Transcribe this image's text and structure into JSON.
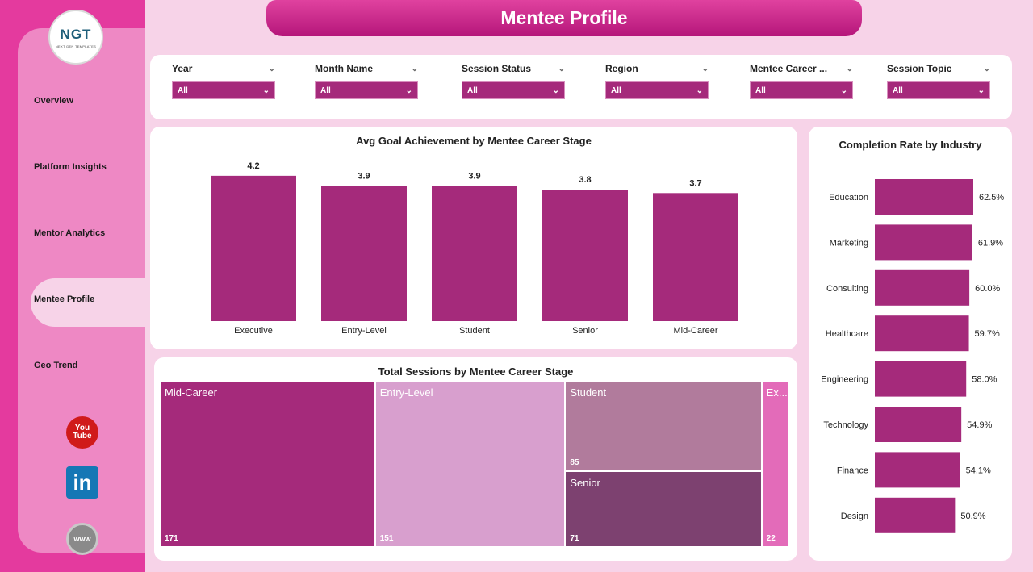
{
  "logo": {
    "mark": "NGT",
    "sub": "NEXT GEN TEMPLATES"
  },
  "nav": {
    "items": [
      {
        "label": "Overview"
      },
      {
        "label": "Platform Insights"
      },
      {
        "label": "Mentor Analytics"
      },
      {
        "label": "Mentee Profile"
      },
      {
        "label": "Geo Trend"
      }
    ],
    "active": "Mentee Profile"
  },
  "social": {
    "youtube": "You Tube",
    "linkedin": "in",
    "web": "www"
  },
  "page_title": "Mentee Profile",
  "filters": [
    {
      "label": "Year",
      "value": "All"
    },
    {
      "label": "Month Name",
      "value": "All"
    },
    {
      "label": "Session Status",
      "value": "All"
    },
    {
      "label": "Region",
      "value": "All"
    },
    {
      "label": "Mentee Career ...",
      "value": "All"
    },
    {
      "label": "Session Topic",
      "value": "All"
    }
  ],
  "colors": {
    "bar": "#a52a7b",
    "accent": "#e43a9e",
    "panel": "#ffffff",
    "bg": "#f7d3e8"
  },
  "chart_data": [
    {
      "type": "bar",
      "title": "Avg Goal Achievement by Mentee Career Stage",
      "categories": [
        "Executive",
        "Entry-Level",
        "Student",
        "Senior",
        "Mid-Career"
      ],
      "values": [
        4.2,
        3.9,
        3.9,
        3.8,
        3.7
      ],
      "ylim": [
        0,
        4.5
      ],
      "data_labels": true
    },
    {
      "type": "bar",
      "orientation": "horizontal",
      "title": "Completion Rate by Industry",
      "categories": [
        "Education",
        "Marketing",
        "Consulting",
        "Healthcare",
        "Engineering",
        "Technology",
        "Finance",
        "Design"
      ],
      "values": [
        62.5,
        61.9,
        60.0,
        59.7,
        58.0,
        54.9,
        54.1,
        50.9
      ],
      "labels": [
        "62.5%",
        "61.9%",
        "60.0%",
        "59.7%",
        "58.0%",
        "54.9%",
        "54.1%",
        "50.9%"
      ],
      "unit": "%"
    },
    {
      "type": "treemap",
      "title": "Total Sessions by Mentee Career Stage",
      "categories": [
        "Mid-Career",
        "Entry-Level",
        "Student",
        "Senior",
        "Ex..."
      ],
      "values": [
        171,
        151,
        85,
        71,
        22
      ],
      "colors": [
        "#a52a7b",
        "#d89fce",
        "#b17b9c",
        "#7d4170",
        "#e36bb9"
      ]
    }
  ]
}
